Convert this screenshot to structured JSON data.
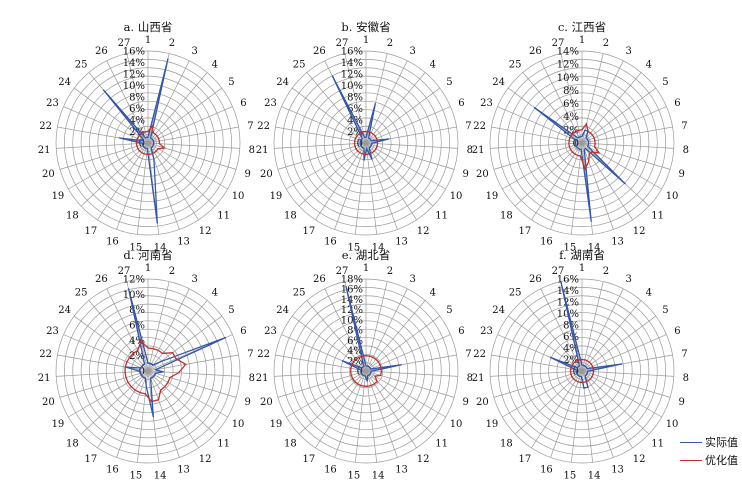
{
  "chart_data": [
    {
      "type": "radar",
      "title": "a. 山西省",
      "categories": [
        "1",
        "2",
        "3",
        "4",
        "5",
        "6",
        "7",
        "8",
        "9",
        "10",
        "11",
        "12",
        "13",
        "14",
        "15",
        "16",
        "17",
        "18",
        "19",
        "20",
        "21",
        "22",
        "23",
        "24",
        "25",
        "26",
        "27"
      ],
      "ylim": [
        0,
        16
      ],
      "ticks": [
        "0",
        "2%",
        "4%",
        "6%",
        "8%",
        "10%",
        "12%",
        "14%",
        "16%"
      ],
      "series": [
        {
          "name": "实际值",
          "values": [
            1,
            15,
            1,
            1,
            1,
            1,
            1,
            1,
            1,
            1,
            1,
            1,
            3,
            14,
            1,
            1,
            1,
            1,
            1,
            1,
            1,
            5,
            1,
            1,
            12,
            1,
            1
          ]
        },
        {
          "name": "优化值",
          "values": [
            2,
            3,
            2,
            2,
            2,
            2,
            2,
            2,
            3,
            2,
            2,
            2,
            2,
            2,
            2,
            2,
            2,
            2,
            2,
            2,
            2,
            2,
            2,
            2,
            2,
            2,
            2
          ]
        }
      ]
    },
    {
      "type": "radar",
      "title": "b. 安徽省",
      "categories": [
        "1",
        "2",
        "3",
        "4",
        "5",
        "6",
        "7",
        "8",
        "9",
        "10",
        "11",
        "12",
        "13",
        "14",
        "15",
        "16",
        "17",
        "18",
        "19",
        "20",
        "21",
        "22",
        "23",
        "24",
        "25",
        "26",
        "27"
      ],
      "ylim": [
        0,
        16
      ],
      "ticks": [
        "0",
        "2%",
        "4%",
        "6%",
        "8%",
        "10%",
        "12%",
        "14%",
        "16%"
      ],
      "series": [
        {
          "name": "实际值",
          "values": [
            1,
            7,
            1,
            1,
            1,
            1,
            4,
            1,
            1,
            1,
            1,
            1,
            3,
            1,
            3,
            1,
            1,
            1,
            1,
            1,
            1,
            1,
            1,
            1,
            1,
            13,
            1
          ]
        },
        {
          "name": "优化值",
          "values": [
            2,
            2,
            2,
            2,
            2,
            2,
            2,
            2,
            2,
            2,
            2,
            2,
            2,
            2,
            2,
            2,
            2,
            2,
            2,
            2,
            2,
            2,
            2,
            2,
            2,
            2,
            2
          ]
        }
      ]
    },
    {
      "type": "radar",
      "title": "c. 江西省",
      "categories": [
        "1",
        "2",
        "3",
        "4",
        "5",
        "6",
        "7",
        "8",
        "9",
        "10",
        "11",
        "12",
        "13",
        "14",
        "15",
        "16",
        "17",
        "18",
        "19",
        "20",
        "21",
        "22",
        "23",
        "24",
        "25",
        "26",
        "27"
      ],
      "ylim": [
        0,
        14
      ],
      "ticks": [
        "0",
        "2%",
        "4%",
        "6%",
        "8%",
        "10%",
        "12%",
        "14%"
      ],
      "series": [
        {
          "name": "实际值",
          "values": [
            1,
            2,
            2,
            1,
            1,
            1,
            1,
            1,
            1,
            1,
            9,
            1,
            1,
            12,
            1,
            1,
            1,
            1,
            1,
            1,
            1,
            1,
            1,
            9,
            1,
            1,
            1
          ]
        },
        {
          "name": "优化值",
          "values": [
            2,
            3,
            2,
            2,
            2,
            2,
            2,
            2,
            2,
            3,
            2,
            2,
            3,
            4,
            2,
            2,
            2,
            2,
            2,
            2,
            2,
            2,
            2,
            2,
            2,
            2,
            2
          ]
        }
      ]
    },
    {
      "type": "radar",
      "title": "d. 河南省",
      "categories": [
        "1",
        "2",
        "3",
        "4",
        "5",
        "6",
        "7",
        "8",
        "9",
        "10",
        "11",
        "12",
        "13",
        "14",
        "15",
        "16",
        "17",
        "18",
        "19",
        "20",
        "21",
        "22",
        "23",
        "24",
        "25",
        "26",
        "27"
      ],
      "ylim": [
        0,
        12
      ],
      "ticks": [
        "0",
        "2%",
        "4%",
        "6%",
        "8%",
        "10%",
        "12%"
      ],
      "series": [
        {
          "name": "实际值",
          "values": [
            1,
            1,
            1,
            1,
            2,
            11,
            1,
            2,
            1,
            1,
            1,
            1,
            1,
            6,
            2,
            1,
            1,
            1,
            1,
            1,
            1,
            3,
            1,
            1,
            1,
            1,
            11
          ]
        },
        {
          "name": "优化值",
          "values": [
            3,
            3,
            3,
            3,
            4,
            4,
            5,
            4,
            3,
            3,
            3,
            3,
            4,
            4,
            3,
            3,
            3,
            3,
            3,
            3,
            3,
            3,
            3,
            3,
            3,
            3,
            4
          ]
        }
      ]
    },
    {
      "type": "radar",
      "title": "e. 湖北省",
      "categories": [
        "1",
        "2",
        "3",
        "4",
        "5",
        "6",
        "7",
        "8",
        "9",
        "10",
        "11",
        "12",
        "13",
        "14",
        "15",
        "16",
        "17",
        "18",
        "19",
        "20",
        "21",
        "22",
        "23",
        "24",
        "25",
        "26",
        "27"
      ],
      "ylim": [
        0,
        18
      ],
      "ticks": [
        "0",
        "2%",
        "4%",
        "6%",
        "8%",
        "10%",
        "12%",
        "14%",
        "16%",
        "18%"
      ],
      "series": [
        {
          "name": "实际值",
          "values": [
            1,
            1,
            1,
            1,
            1,
            1,
            7,
            1,
            1,
            1,
            1,
            1,
            1,
            2,
            1,
            1,
            1,
            1,
            1,
            1,
            1,
            1,
            5,
            1,
            1,
            1,
            17
          ]
        },
        {
          "name": "优化值",
          "values": [
            3,
            3,
            3,
            3,
            3,
            3,
            3,
            3,
            3,
            2,
            3,
            3,
            3,
            3,
            3,
            3,
            3,
            3,
            3,
            3,
            3,
            3,
            3,
            3,
            3,
            3,
            3
          ]
        }
      ]
    },
    {
      "type": "radar",
      "title": "f. 湖南省",
      "categories": [
        "1",
        "2",
        "3",
        "4",
        "5",
        "6",
        "7",
        "8",
        "9",
        "10",
        "11",
        "12",
        "13",
        "14",
        "15",
        "16",
        "17",
        "18",
        "19",
        "20",
        "21",
        "22",
        "23",
        "24",
        "25",
        "26",
        "27"
      ],
      "ylim": [
        0,
        16
      ],
      "ticks": [
        "0",
        "2%",
        "4%",
        "6%",
        "8%",
        "10%",
        "12%",
        "14%",
        "16%"
      ],
      "series": [
        {
          "name": "实际值",
          "values": [
            1,
            1,
            1,
            1,
            1,
            1,
            7,
            1,
            1,
            1,
            1,
            1,
            3,
            3,
            1,
            1,
            1,
            1,
            1,
            1,
            1,
            1,
            6,
            1,
            1,
            1,
            16
          ]
        },
        {
          "name": "优化值",
          "values": [
            2,
            2,
            2,
            2,
            2,
            2,
            2,
            2,
            2,
            2,
            2,
            2,
            2,
            2,
            2,
            2,
            2,
            2,
            2,
            2,
            2,
            2,
            2,
            2,
            2,
            2,
            2
          ]
        }
      ]
    }
  ],
  "legend": {
    "actual_label": "实际值",
    "optimized_label": "优化值",
    "actual_color": "#3355aa",
    "optimized_color": "#c0302e"
  },
  "colors": {
    "grid": "#9a9a9a",
    "text": "#111111"
  }
}
